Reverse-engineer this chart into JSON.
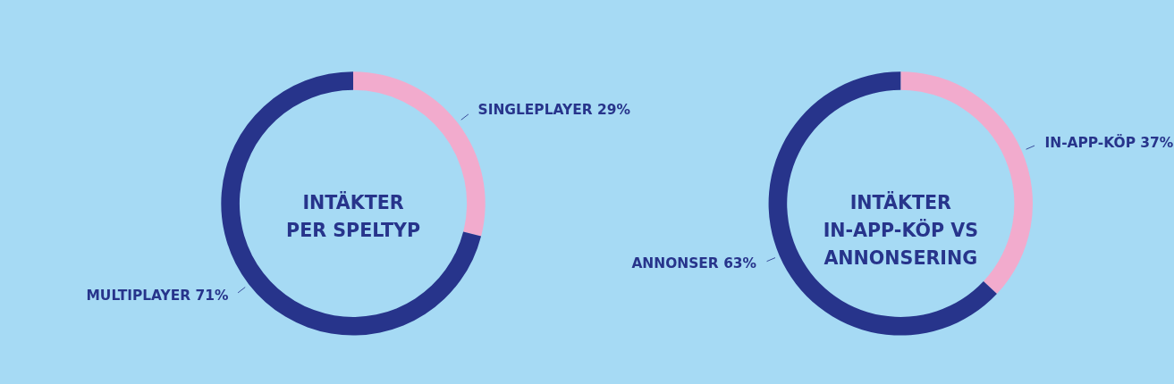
{
  "chart_data": [
    {
      "type": "donut",
      "title": "INTÄKTER\nPER SPELTYP",
      "categories": [
        "SINGLEPLAYER",
        "MULTIPLAYER"
      ],
      "values": [
        29,
        71
      ],
      "value_labels": [
        "29%",
        "71%"
      ],
      "colors": [
        "#f2abcd",
        "#27348b"
      ]
    },
    {
      "type": "donut",
      "title": "INTÄKTER\nIN-APP-KÖP VS\nANNONSERING",
      "categories": [
        "IN-APP-KÖP",
        "ANNONSER"
      ],
      "values": [
        37,
        63
      ],
      "value_labels": [
        "37%",
        "63%"
      ],
      "colors": [
        "#f2abcd",
        "#27348b"
      ]
    }
  ]
}
